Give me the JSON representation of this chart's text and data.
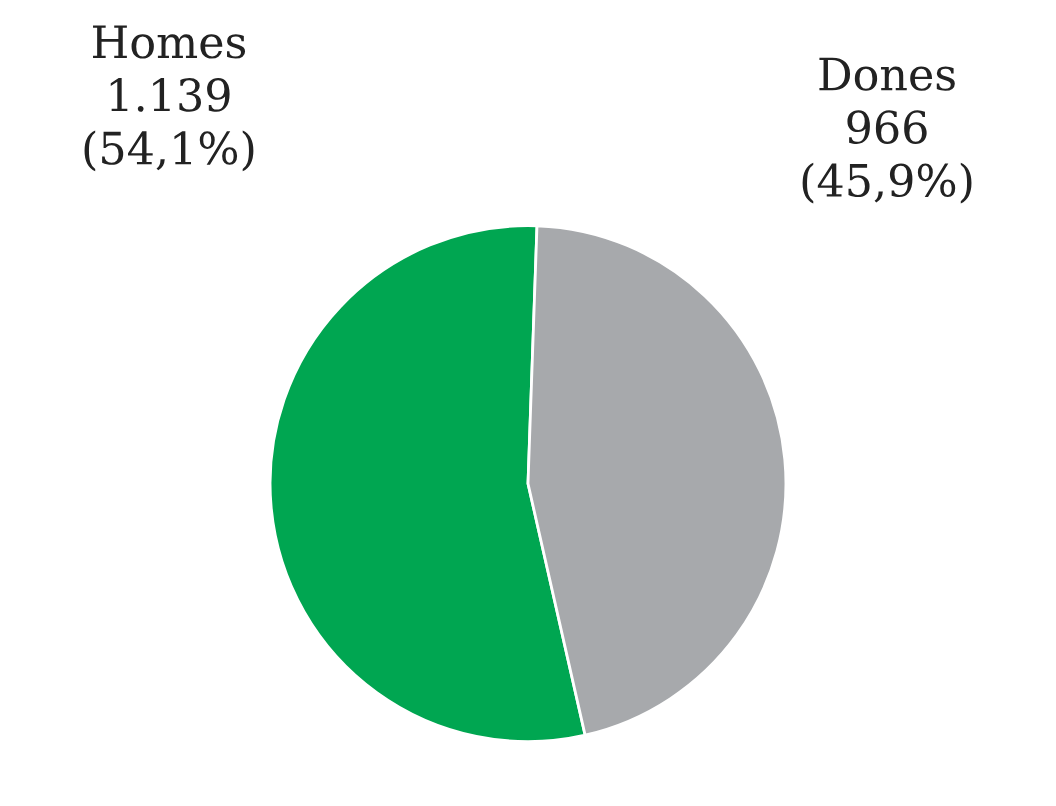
{
  "chart_data": {
    "type": "pie",
    "categories": [
      "Homes",
      "Dones"
    ],
    "values": [
      1139,
      966
    ],
    "value_labels": [
      "1.139\n(54,1%)",
      "966\n(45,9%)"
    ],
    "colors": [
      "#00a651",
      "#a7a9ac"
    ]
  }
}
